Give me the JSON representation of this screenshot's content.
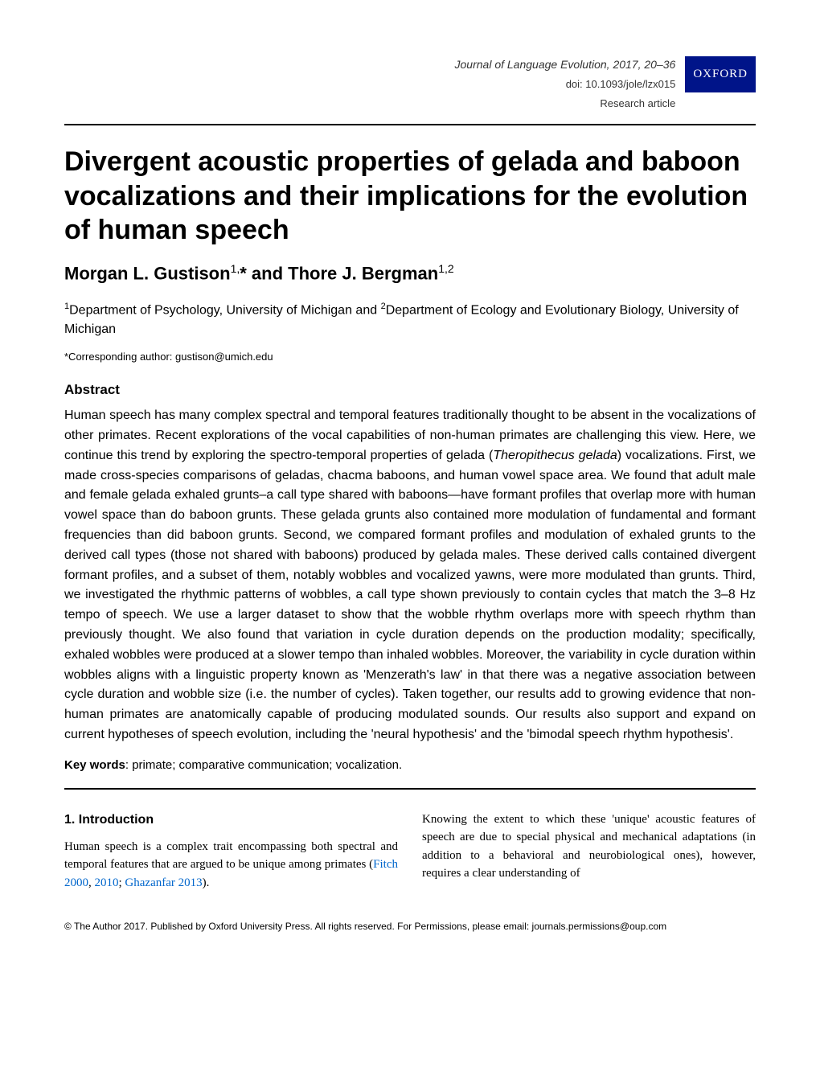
{
  "header": {
    "journal": "Journal of Language Evolution",
    "year_pages": ", 2017, 20–36",
    "doi": "doi: 10.1093/jole/lzx015",
    "article_type": "Research article",
    "publisher_badge": "OXFORD"
  },
  "title": "Divergent acoustic properties of gelada and baboon vocalizations and their implications for the evolution of human speech",
  "authors_line": "Morgan L. Gustison",
  "authors_sup1": "1,",
  "authors_star": "*",
  "authors_and": " and Thore J. Bergman",
  "authors_sup2": "1,2",
  "affiliations": {
    "sup1": "1",
    "text1": "Department of Psychology, University of Michigan and ",
    "sup2": "2",
    "text2": "Department of Ecology and Evolutionary Biology, University of Michigan"
  },
  "corresponding": "*Corresponding author: gustison@umich.edu",
  "abstract": {
    "heading": "Abstract",
    "body_part1": "Human speech has many complex spectral and temporal features traditionally thought to be absent in the vocalizations of other primates. Recent explorations of the vocal capabilities of non-human primates are challenging this view. Here, we continue this trend by exploring the spectro-temporal properties of gelada (",
    "body_italic": "Theropithecus gelada",
    "body_part2": ") vocalizations. First, we made cross-species comparisons of geladas, chacma baboons, and human vowel space area. We found that adult male and female gelada exhaled grunts–a call type shared with baboons—have formant profiles that overlap more with human vowel space than do baboon grunts. These gelada grunts also contained more modulation of fundamental and formant frequencies than did baboon grunts. Second, we compared formant profiles and modulation of exhaled grunts to the derived call types (those not shared with baboons) produced by gelada males. These derived calls contained divergent formant profiles, and a subset of them, notably wobbles and vocalized yawns, were more modulated than grunts. Third, we investigated the rhythmic patterns of wobbles, a call type shown previously to contain cycles that match the 3–8 Hz tempo of speech. We use a larger dataset to show that the wobble rhythm overlaps more with speech rhythm than previously thought. We also found that variation in cycle duration depends on the production modality; specifically, exhaled wobbles were produced at a slower tempo than inhaled wobbles. Moreover, the variability in cycle duration within wobbles aligns with a linguistic property known as 'Menzerath's law' in that there was a negative association between cycle duration and wobble size (i.e. the number of cycles). Taken together, our results add to growing evidence that non-human primates are anatomically capable of producing modulated sounds. Our results also support and expand on current hypotheses of speech evolution, including the 'neural hypothesis' and the 'bimodal speech rhythm hypothesis'."
  },
  "keywords": {
    "label": "Key words",
    "text": ": primate; comparative communication; vocalization."
  },
  "introduction": {
    "heading": "1. Introduction",
    "col1_text": "Human speech is a complex trait encompassing both spectral and temporal features that are argued to be unique among primates (",
    "cite1": "Fitch 2000",
    "comma1": ", ",
    "cite2": "2010",
    "semicolon": "; ",
    "cite3": "Ghazanfar 2013",
    "close_paren": ").",
    "col2_text": "Knowing the extent to which these 'unique' acoustic features of speech are due to special physical and mechanical adaptations (in addition to a behavioral and neurobiological ones), however, requires a clear understanding of"
  },
  "copyright": "© The Author 2017. Published by Oxford University Press. All rights reserved. For Permissions, please email: journals.permissions@oup.com",
  "colors": {
    "oxford_badge_bg": "#001489",
    "oxford_badge_text": "#ffffff",
    "citation_link": "#0066cc",
    "text": "#000000",
    "rule": "#000000"
  },
  "typography": {
    "title_fontsize": 34,
    "authors_fontsize": 22,
    "abstract_fontsize": 16,
    "body_fontsize": 15,
    "meta_fontsize": 14,
    "copyright_fontsize": 12
  }
}
